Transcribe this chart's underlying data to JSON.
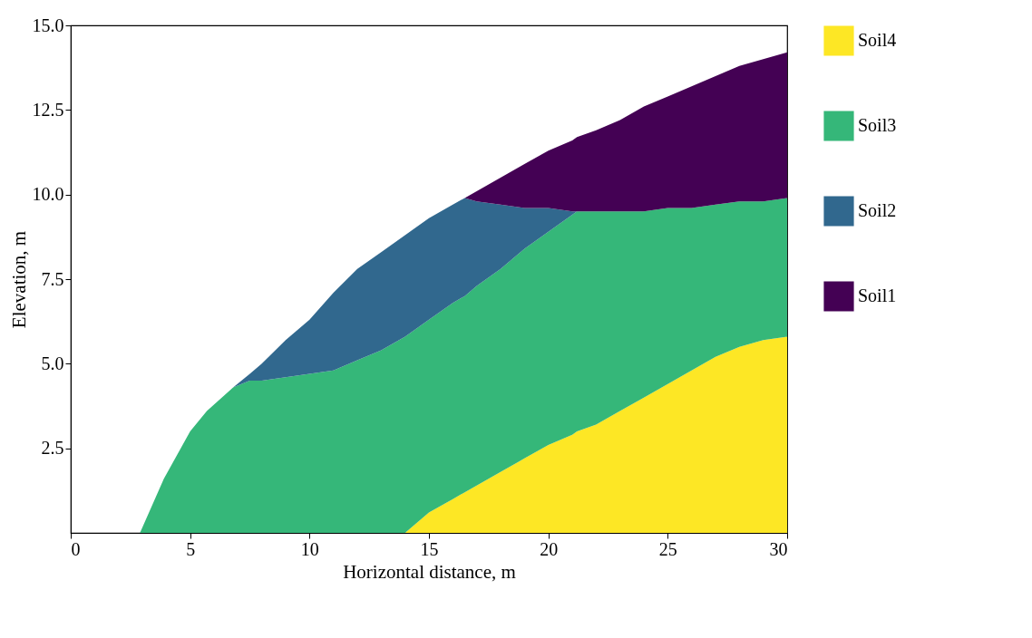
{
  "chart_data": {
    "type": "area",
    "stacked": true,
    "xlabel": "Horizontal distance, m",
    "ylabel": "Elevation, m",
    "x": [
      2.9,
      3.9,
      5,
      5.7,
      6.8,
      7.5,
      8,
      9,
      10,
      11,
      12,
      13,
      14,
      15,
      16,
      16.5,
      17,
      18,
      19,
      20,
      21,
      21.2,
      22,
      23,
      24,
      25,
      26,
      27,
      28,
      29,
      30
    ],
    "series": [
      {
        "name": "Soil4",
        "color": "#fde725",
        "values": [
          null,
          null,
          null,
          null,
          null,
          null,
          null,
          null,
          null,
          null,
          null,
          null,
          0,
          0.6,
          1.0,
          1.2,
          1.4,
          1.8,
          2.2,
          2.6,
          2.9,
          3.0,
          3.2,
          3.6,
          4.0,
          4.4,
          4.8,
          5.2,
          5.5,
          5.7,
          5.8
        ]
      },
      {
        "name": "Soil3",
        "color": "#35b779",
        "values": [
          0,
          1.6,
          3.0,
          3.6,
          4.3,
          4.5,
          4.5,
          4.6,
          4.7,
          4.8,
          5.1,
          5.4,
          5.8,
          5.7,
          5.8,
          5.8,
          5.9,
          6.0,
          6.2,
          6.3,
          6.5,
          6.5,
          6.3,
          5.9,
          5.5,
          5.2,
          4.8,
          4.5,
          4.3,
          4.1,
          4.1
        ]
      },
      {
        "name": "Soil2",
        "color": "#31688e",
        "values": [
          null,
          null,
          null,
          null,
          0,
          0.2,
          0.5,
          1.1,
          1.6,
          2.3,
          2.7,
          2.9,
          3.0,
          3.0,
          2.9,
          2.9,
          2.5,
          1.9,
          1.2,
          0.7,
          0.1,
          0,
          null,
          null,
          null,
          null,
          null,
          null,
          null,
          null,
          null
        ]
      },
      {
        "name": "Soil1",
        "color": "#440154",
        "values": [
          null,
          null,
          null,
          null,
          null,
          null,
          null,
          null,
          null,
          null,
          null,
          null,
          null,
          null,
          null,
          0,
          0.3,
          0.8,
          1.3,
          1.7,
          2.1,
          2.2,
          2.4,
          2.7,
          3.1,
          3.3,
          3.6,
          3.8,
          4.0,
          4.2,
          4.3
        ]
      }
    ],
    "xlim": [
      0,
      30
    ],
    "xticks": [
      0,
      5,
      10,
      15,
      20,
      25,
      30
    ],
    "ylim": [
      0,
      15
    ],
    "yticks": [
      {
        "value": 2.5,
        "label": "2.5"
      },
      {
        "value": 5,
        "label": "5.0"
      },
      {
        "value": 7.5,
        "label": "7.5"
      },
      {
        "value": 10,
        "label": "10.0"
      },
      {
        "value": 12.5,
        "label": "12.5"
      },
      {
        "value": 15,
        "label": "15.0"
      }
    ],
    "grid": false,
    "legend": "right"
  }
}
